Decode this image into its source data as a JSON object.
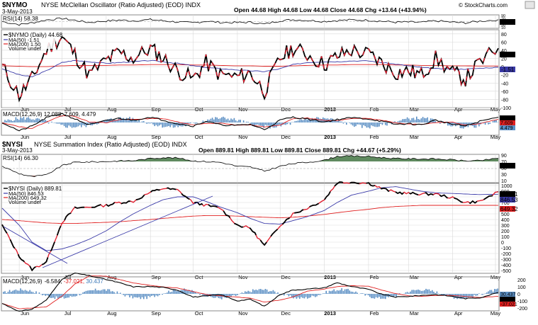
{
  "top": {
    "symbol": "$NYMO",
    "title": "NYSE McClellan Oscillator (Ratio Adjusted) (EOD) INDX",
    "date": "3-May-2013",
    "ohlc_text": "Open 44.68   High 44.68   Low 44.68   Close 44.68   Chg +13.64 (+43.94%)",
    "watermark": "© StockCharts.com",
    "rsi_legend": "RSI(14) 58.38",
    "rsi_value_badge": "58.38",
    "rsi_ticks": [
      "90",
      "70",
      "50",
      "30",
      "10"
    ],
    "legend_main": "$NYMO (Daily) 44.68",
    "legend_ma50": "MA(50) -1.51",
    "legend_ma200": "MA(200) 1.50",
    "legend_volume": "Volume undef",
    "main_ticks": [
      "80",
      "60",
      "40",
      "20",
      "0",
      "-20",
      "-40",
      "-60",
      "-80",
      "-100"
    ],
    "badge_close": "44.68",
    "badge_ma50": "-1.51",
    "macd_legend": "MACD(12,26,9) 12.088, 7.609, 4.479",
    "macd_badges": [
      "12.088",
      "7.609",
      "4.479"
    ],
    "months": [
      "Jun",
      "Jul",
      "Aug",
      "Sep",
      "Oct",
      "Nov",
      "Dec",
      "2013",
      "Feb",
      "Mar",
      "Apr",
      "May"
    ]
  },
  "bottom": {
    "symbol": "$NYSI",
    "title": "NYSE Summation Index (Ratio Adjusted) (EOD) INDX",
    "date": "3-May-2013",
    "ohlc_text": "Open 889.81   High 889.81   Low 889.81   Close 889.81   Chg +44.67 (+5.29%)",
    "rsi_legend": "RSI(14) 66.30",
    "rsi_value_badge": "66.30",
    "rsi_ticks": [
      "90",
      "70",
      "50",
      "30",
      "10"
    ],
    "legend_main": "$NYSI (Daily) 889.81",
    "legend_ma50": "MA(50) 846.53",
    "legend_ma200": "MA(200) 649.32",
    "legend_volume": "Volume undef",
    "main_ticks": [
      "1000",
      "900",
      "800",
      "700",
      "600",
      "500",
      "400",
      "300",
      "200",
      "100",
      "0",
      "-100",
      "-200",
      "-300",
      "-400",
      "-500"
    ],
    "badge_close": "889.81",
    "badge_ma50": "846.53",
    "badge_ma200": "649.32",
    "macd_legend": "MACD(12,26,9) -6.584, -37.021, 30.437",
    "macd_value_parts": [
      "-6.584, ",
      "-37.021, ",
      "30.437"
    ],
    "macd_ticks": [
      "200",
      "100",
      "0",
      "-100",
      "-200"
    ],
    "macd_badges": [
      "30.437",
      "-6.584",
      "-37.021"
    ],
    "months": [
      "Jun",
      "Jul",
      "Aug",
      "Sep",
      "Oct",
      "Nov",
      "Dec",
      "2013",
      "Feb",
      "Mar",
      "Apr",
      "May"
    ]
  },
  "colors": {
    "price": "#000000",
    "ma50": "#3a3aa8",
    "ma200": "#e02020",
    "rsi_overbought_fill": "#5f8a5f",
    "rsi_oversold_fill": "#9a6a62",
    "macd_hist": "#5b8fc4",
    "grid": "#d9d9d9"
  },
  "chart_data": [
    {
      "type": "line",
      "title": "NYSE McClellan Oscillator (Ratio Adjusted) (EOD) INDX",
      "x": [
        "2012-05-20",
        "2012-06-01",
        "2012-06-10",
        "2012-06-20",
        "2012-07-01",
        "2012-07-10",
        "2012-07-20",
        "2012-08-01",
        "2012-08-10",
        "2012-08-20",
        "2012-09-01",
        "2012-09-10",
        "2012-09-20",
        "2012-10-01",
        "2012-10-10",
        "2012-10-20",
        "2012-11-01",
        "2012-11-10",
        "2012-11-20",
        "2012-12-01",
        "2012-12-10",
        "2012-12-20",
        "2013-01-01",
        "2013-01-10",
        "2013-01-20",
        "2013-02-01",
        "2013-02-10",
        "2013-02-20",
        "2013-03-01",
        "2013-03-10",
        "2013-03-20",
        "2013-04-01",
        "2013-04-10",
        "2013-04-20",
        "2013-05-03"
      ],
      "series": [
        {
          "name": "$NYMO (Daily)",
          "values": [
            0,
            -70,
            -30,
            40,
            75,
            30,
            -20,
            15,
            35,
            20,
            45,
            20,
            -10,
            -30,
            10,
            -20,
            -25,
            -15,
            -60,
            20,
            45,
            30,
            5,
            25,
            40,
            30,
            10,
            -15,
            -10,
            -20,
            20,
            -15,
            -30,
            10,
            44.68
          ]
        },
        {
          "name": "MA(50)",
          "values": [
            -5,
            -20,
            -25,
            -10,
            10,
            15,
            12,
            8,
            10,
            12,
            15,
            12,
            8,
            2,
            -2,
            -5,
            -8,
            -10,
            -12,
            -5,
            5,
            10,
            12,
            12,
            14,
            14,
            10,
            6,
            2,
            -2,
            -5,
            -6,
            -6,
            -4,
            -1.51
          ]
        },
        {
          "name": "MA(200)",
          "values": [
            2,
            1,
            0,
            0,
            2,
            3,
            3,
            3,
            4,
            4,
            5,
            5,
            5,
            4,
            4,
            3,
            2,
            2,
            1,
            1,
            2,
            3,
            4,
            4,
            5,
            5,
            5,
            4,
            4,
            3,
            3,
            2,
            2,
            1.5,
            1.5
          ]
        }
      ],
      "ylim": [
        -100,
        90
      ],
      "rsi": {
        "label": "RSI(14)",
        "last": 58.38,
        "ylim": [
          10,
          90
        ]
      },
      "macd": {
        "label": "MACD(12,26,9)",
        "values": [
          12.088,
          7.609,
          4.479
        ]
      }
    },
    {
      "type": "line",
      "title": "NYSE Summation Index (Ratio Adjusted) (EOD) INDX",
      "x": [
        "2012-05-20",
        "2012-06-01",
        "2012-06-10",
        "2012-06-20",
        "2012-07-01",
        "2012-07-10",
        "2012-07-20",
        "2012-08-01",
        "2012-08-10",
        "2012-08-20",
        "2012-09-01",
        "2012-09-10",
        "2012-09-20",
        "2012-10-01",
        "2012-10-10",
        "2012-10-20",
        "2012-11-01",
        "2012-11-10",
        "2012-11-20",
        "2012-12-01",
        "2012-12-10",
        "2012-12-20",
        "2013-01-01",
        "2013-01-10",
        "2013-01-20",
        "2013-02-01",
        "2013-02-10",
        "2013-02-20",
        "2013-03-01",
        "2013-03-10",
        "2013-03-20",
        "2013-04-01",
        "2013-04-10",
        "2013-04-20",
        "2013-05-03"
      ],
      "series": [
        {
          "name": "$NYSI (Daily)",
          "values": [
            300,
            -250,
            -480,
            -350,
            350,
            600,
            620,
            650,
            700,
            720,
            880,
            950,
            920,
            700,
            650,
            600,
            300,
            250,
            -60,
            300,
            500,
            600,
            750,
            1050,
            1060,
            1040,
            950,
            880,
            860,
            850,
            850,
            780,
            700,
            720,
            889.81
          ]
        },
        {
          "name": "MA(50)",
          "values": [
            600,
            300,
            0,
            -150,
            -120,
            -50,
            50,
            200,
            350,
            500,
            650,
            750,
            800,
            800,
            720,
            620,
            520,
            420,
            330,
            320,
            380,
            450,
            560,
            700,
            830,
            900,
            960,
            980,
            940,
            900,
            870,
            860,
            850,
            840,
            846.53
          ]
        },
        {
          "name": "MA(200)",
          "values": [
            400,
            380,
            360,
            340,
            330,
            330,
            340,
            350,
            360,
            380,
            400,
            420,
            440,
            460,
            470,
            470,
            460,
            450,
            440,
            430,
            440,
            460,
            490,
            520,
            550,
            580,
            610,
            630,
            640,
            650,
            650,
            650,
            650,
            650,
            649.32
          ]
        }
      ],
      "ylim": [
        -500,
        1000
      ],
      "rsi": {
        "label": "RSI(14)",
        "last": 66.3,
        "ylim": [
          10,
          90
        ]
      },
      "macd": {
        "label": "MACD(12,26,9)",
        "values": [
          -6.584,
          -37.021,
          30.437
        ],
        "ylim": [
          -200,
          200
        ]
      }
    }
  ]
}
